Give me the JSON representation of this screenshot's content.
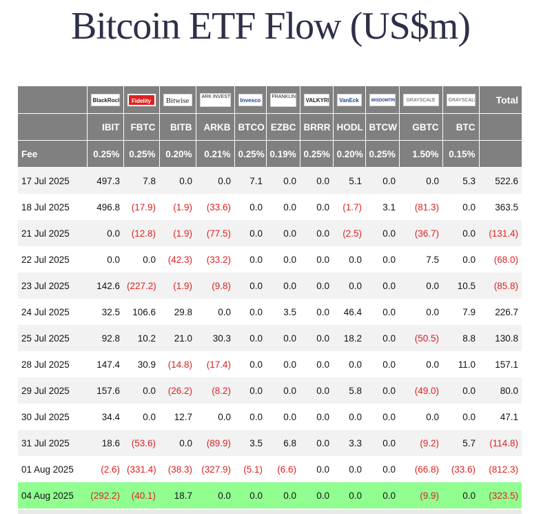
{
  "page": {
    "title": "Bitcoin ETF Flow (US$m)"
  },
  "table": {
    "logos": [
      "BlackRock",
      "Fidelity",
      "Bitwise",
      "ARK INVEST",
      "Invesco",
      "FRANKLIN TEMPLETON",
      "VALKYRIE",
      "VanEck",
      "WISDOMTREE",
      "GRAYSCALE",
      "GRAYSCALE"
    ],
    "total_label": "Total",
    "tickers": [
      "IBIT",
      "FBTC",
      "BITB",
      "ARKB",
      "BTCO",
      "EZBC",
      "BRRR",
      "HODL",
      "BTCW",
      "GBTC",
      "BTC"
    ],
    "fee_label": "Fee",
    "fees": [
      "0.25%",
      "0.25%",
      "0.20%",
      "0.21%",
      "0.25%",
      "0.19%",
      "0.25%",
      "0.20%",
      "0.25%",
      "1.50%",
      "0.15%"
    ],
    "rows": [
      {
        "date": "17 Jul 2025",
        "values": [
          "497.3",
          "7.8",
          "0.0",
          "0.0",
          "7.1",
          "0.0",
          "0.0",
          "5.1",
          "0.0",
          "0.0",
          "5.3",
          "522.6"
        ]
      },
      {
        "date": "18 Jul 2025",
        "values": [
          "496.8",
          "(17.9)",
          "(1.9)",
          "(33.6)",
          "0.0",
          "0.0",
          "0.0",
          "(1.7)",
          "3.1",
          "(81.3)",
          "0.0",
          "363.5"
        ]
      },
      {
        "date": "21 Jul 2025",
        "values": [
          "0.0",
          "(12.8)",
          "(1.9)",
          "(77.5)",
          "0.0",
          "0.0",
          "0.0",
          "(2.5)",
          "0.0",
          "(36.7)",
          "0.0",
          "(131.4)"
        ]
      },
      {
        "date": "22 Jul 2025",
        "values": [
          "0.0",
          "0.0",
          "(42.3)",
          "(33.2)",
          "0.0",
          "0.0",
          "0.0",
          "0.0",
          "0.0",
          "7.5",
          "0.0",
          "(68.0)"
        ]
      },
      {
        "date": "23 Jul 2025",
        "values": [
          "142.6",
          "(227.2)",
          "(1.9)",
          "(9.8)",
          "0.0",
          "0.0",
          "0.0",
          "0.0",
          "0.0",
          "0.0",
          "10.5",
          "(85.8)"
        ]
      },
      {
        "date": "24 Jul 2025",
        "values": [
          "32.5",
          "106.6",
          "29.8",
          "0.0",
          "0.0",
          "3.5",
          "0.0",
          "46.4",
          "0.0",
          "0.0",
          "7.9",
          "226.7"
        ]
      },
      {
        "date": "25 Jul 2025",
        "values": [
          "92.8",
          "10.2",
          "21.0",
          "30.3",
          "0.0",
          "0.0",
          "0.0",
          "18.2",
          "0.0",
          "(50.5)",
          "8.8",
          "130.8"
        ]
      },
      {
        "date": "28 Jul 2025",
        "values": [
          "147.4",
          "30.9",
          "(14.8)",
          "(17.4)",
          "0.0",
          "0.0",
          "0.0",
          "0.0",
          "0.0",
          "0.0",
          "11.0",
          "157.1"
        ]
      },
      {
        "date": "29 Jul 2025",
        "values": [
          "157.6",
          "0.0",
          "(26.2)",
          "(8.2)",
          "0.0",
          "0.0",
          "0.0",
          "5.8",
          "0.0",
          "(49.0)",
          "0.0",
          "80.0"
        ]
      },
      {
        "date": "30 Jul 2025",
        "values": [
          "34.4",
          "0.0",
          "12.7",
          "0.0",
          "0.0",
          "0.0",
          "0.0",
          "0.0",
          "0.0",
          "0.0",
          "0.0",
          "47.1"
        ]
      },
      {
        "date": "31 Jul 2025",
        "values": [
          "18.6",
          "(53.6)",
          "0.0",
          "(89.9)",
          "3.5",
          "6.8",
          "0.0",
          "3.3",
          "0.0",
          "(9.2)",
          "5.7",
          "(114.8)"
        ]
      },
      {
        "date": "01 Aug 2025",
        "values": [
          "(2.6)",
          "(331.4)",
          "(38.3)",
          "(327.9)",
          "(5.1)",
          "(6.6)",
          "0.0",
          "0.0",
          "0.0",
          "(66.8)",
          "(33.6)",
          "(812.3)"
        ]
      },
      {
        "date": "04 Aug 2025",
        "values": [
          "(292.2)",
          "(40.1)",
          "18.7",
          "0.0",
          "0.0",
          "0.0",
          "0.0",
          "0.0",
          "0.0",
          "(9.9)",
          "0.0",
          "(323.5)"
        ],
        "highlight": true
      }
    ]
  },
  "colors": {
    "header_bg": "#808080",
    "negative": "#e02020",
    "highlight_row": "#90ff90",
    "title": "#2d3047"
  }
}
